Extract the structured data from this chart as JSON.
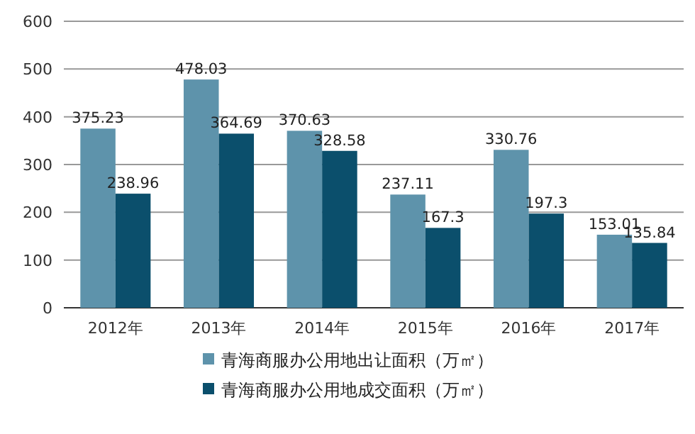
{
  "chart_data": {
    "type": "bar",
    "categories": [
      "2012年",
      "2013年",
      "2014年",
      "2015年",
      "2016年",
      "2017年"
    ],
    "series": [
      {
        "name": "青海商服办公用地出让面积（万㎡）",
        "color": "#5e93ab",
        "values": [
          375.23,
          478.03,
          370.63,
          237.11,
          330.76,
          153.01
        ]
      },
      {
        "name": "青海商服办公用地成交面积（万㎡）",
        "color": "#0b4f6c",
        "values": [
          238.96,
          364.69,
          328.58,
          167.3,
          197.3,
          135.84
        ]
      }
    ],
    "ylim": [
      0,
      600
    ],
    "yticks": [
      0,
      100,
      200,
      300,
      400,
      500,
      600
    ],
    "grid": "y",
    "legend": "bottom",
    "data_labels": true
  }
}
